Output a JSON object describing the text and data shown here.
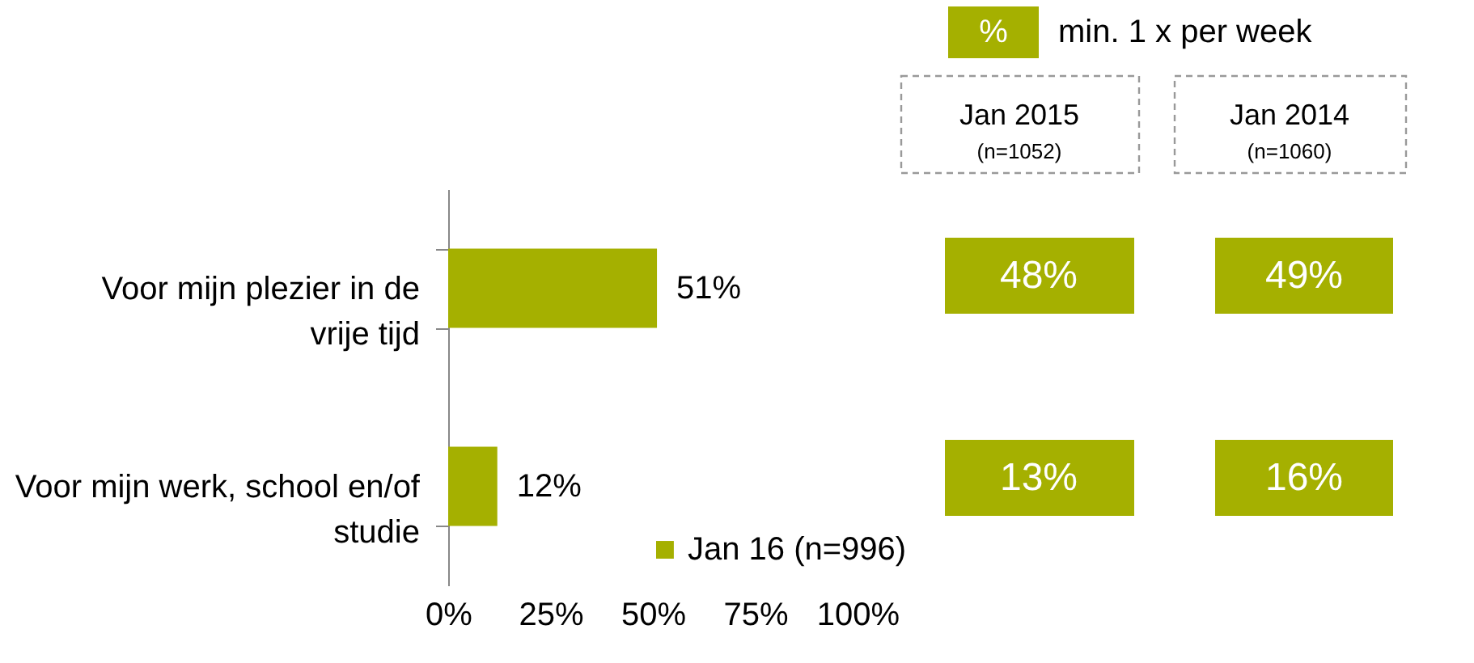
{
  "chart_data": {
    "type": "bar",
    "orientation": "horizontal",
    "categories": [
      "Voor mijn plezier in de vrije tijd",
      "Voor mijn werk, school en/of studie"
    ],
    "series": [
      {
        "name": "Jan 16 (n=996)",
        "color": "#a5b000",
        "values": [
          51,
          12
        ],
        "value_labels": [
          "51%",
          "12%"
        ]
      }
    ],
    "xlim": [
      0,
      100
    ],
    "xticks": [
      {
        "value": 0,
        "label": "0%"
      },
      {
        "value": 25,
        "label": "25%"
      },
      {
        "value": 50,
        "label": "50%"
      },
      {
        "value": 75,
        "label": "75%"
      },
      {
        "value": 100,
        "label": "100%"
      }
    ],
    "legend": "bottom",
    "annotations": [
      "%",
      "min. 1 x per week",
      "Jan 2015",
      "(n=1052)",
      "Jan 2014",
      "(n=1060)",
      "48%",
      "13%",
      "49%",
      "16%"
    ]
  }
}
